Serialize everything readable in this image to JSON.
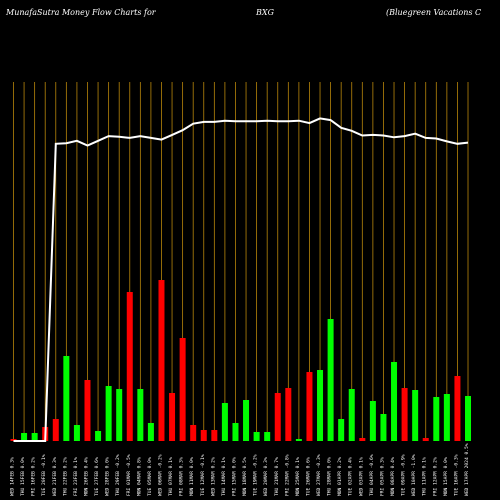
{
  "header": {
    "brand": "MunafaSutra  Money Flow  Charts for",
    "symbol": "BXG",
    "company": "(Bluegreen  Vacations C"
  },
  "colors": {
    "background": "#000000",
    "up_bar": "#00ff00",
    "down_bar": "#ff0000",
    "gridline": "#b8860b",
    "price_line": "#ffffff"
  },
  "chart_data": {
    "type": "bar",
    "ylim": [
      0,
      100
    ],
    "grid": "vertical gridlines",
    "x": [
      "WED 17APR 2024",
      "TUE 16APR 2024",
      "MON 15APR 2024",
      "FRI 12APR 2024",
      "THU 11APR 2024",
      "WED 10APR 2024",
      "TUE 09APR 2024",
      "MON 08APR 2024",
      "FRI 05APR 2024",
      "THU 04APR 2024",
      "WED 03APR 2024",
      "TUE 02APR 2024",
      "MON 01APR 2024",
      "THU 28MAR 2024",
      "WED 27MAR 2024",
      "TUE 26MAR 2024",
      "MON 25MAR 2024",
      "FRI 22MAR 2024",
      "THU 21MAR 2024",
      "WED 20MAR 2024",
      "TUE 19MAR 2024",
      "MON 18MAR 2024",
      "FRI 15MAR 2024",
      "THU 14MAR 2024",
      "WED 13MAR 2024",
      "TUE 12MAR 2024",
      "MON 11MAR 2024",
      "FRI 08MAR 2024",
      "THU 07MAR 2024",
      "WED 06MAR 2024",
      "TUE 05MAR 2024",
      "MON 04MAR 2024",
      "FRI 01MAR 2024",
      "THU 29FEB 2024",
      "WED 28FEB 2024",
      "TUE 27FEB 2024",
      "MON 26FEB 2024",
      "FRI 23FEB 2024",
      "THU 22FEB 2024",
      "WED 21FEB 2024",
      "TUE 20FEB 2024",
      "FRI 16FEB 2024",
      "THU 15FEB 2024",
      "WED 14FEB 2024"
    ],
    "x_labels": [
      "WED 17APR 2024 0.5%",
      "TUE 16APR -0.3%",
      "MON 15APR 0.0%",
      "FRI 12APR 0.2%",
      "THU 11APR 0.1%",
      "WED 10APR -1.0%",
      "TUE 09APR -0.9%",
      "MON 08APR 0.4%",
      "FRI 05APR 0.3%",
      "THU 04APR -0.6%",
      "WED 03APR 0.1%",
      "TUE 02APR 0.4%",
      "MON 01APR 0.2%",
      "THU 28MAR 0.0%",
      "WED 27MAR -0.3%",
      "TUE 26MAR 0.6%",
      "MON 25MAR 0.1%",
      "FRI 22MAR -0.8%",
      "THU 21MAR 0.7%",
      "WED 20MAR 0.3%",
      "TUE 19MAR -0.2%",
      "MON 18MAR 0.5%",
      "FRI 15MAR 0.0%",
      "THU 14MAR 0.1%",
      "WED 13MAR 0.2%",
      "TUE 12MAR -0.1%",
      "MON 11MAR 0.0%",
      "FRI 08MAR 0.3%",
      "THU 07MAR 0.1%",
      "WED 06MAR -0.2%",
      "TUE 05MAR 0.0%",
      "MON 04MAR 0.8%",
      "FRI 01MAR -0.5%",
      "THU 29FEB -0.2%",
      "WED 28FEB 0.0%",
      "TUE 27FEB 0.6%",
      "MON 26FEB 0.4%",
      "FRI 23FEB 0.1%",
      "THU 22FEB 0.2%",
      "WED 21FEB 0.3%",
      "TUE 20FEB -0.1%",
      "FRI 16FEB 0.2%",
      "THU 15FEB 0.0%",
      "WED 14FEB 0.3%"
    ],
    "series": [
      {
        "kind": "money_flow_bars",
        "values": [
          22.5,
          32.5,
          23.5,
          22,
          1.5,
          25.5,
          26.5,
          39.5,
          13.5,
          20,
          1.5,
          26,
          11,
          61,
          35.5,
          34.5,
          1,
          26.5,
          24,
          4.5,
          4.5,
          20.5,
          9,
          19,
          5.5,
          5.5,
          8,
          51.5,
          24,
          80.5,
          9,
          26,
          74.5,
          26,
          27.5,
          5,
          30.5,
          8,
          42.5,
          11,
          7,
          4,
          4,
          1
        ],
        "colors": [
          "green",
          "red",
          "green",
          "green",
          "red",
          "green",
          "red",
          "green",
          "green",
          "green",
          "red",
          "green",
          "green",
          "green",
          "green",
          "red",
          "green",
          "red",
          "red",
          "green",
          "green",
          "green",
          "green",
          "green",
          "red",
          "red",
          "red",
          "red",
          "red",
          "red",
          "green",
          "green",
          "red",
          "green",
          "green",
          "green",
          "red",
          "green",
          "green",
          "red",
          "red",
          "green",
          "green",
          "red"
        ]
      },
      {
        "kind": "price_line",
        "values": [
          50.5,
          50.3,
          50.7,
          51.2,
          51.3,
          52.0,
          51.6,
          51.4,
          51.7,
          51.8,
          51.7,
          52.5,
          53.0,
          54.3,
          54.6,
          53.8,
          54.2,
          54.1,
          54.1,
          54.2,
          54.1,
          54.1,
          54.1,
          54.2,
          54.0,
          54.0,
          53.7,
          52.6,
          51.8,
          51.0,
          51.3,
          51.6,
          51.3,
          51.5,
          51.6,
          50.8,
          50.0,
          50.8,
          50.4,
          50.3,
          0,
          0,
          0,
          0
        ]
      }
    ]
  }
}
